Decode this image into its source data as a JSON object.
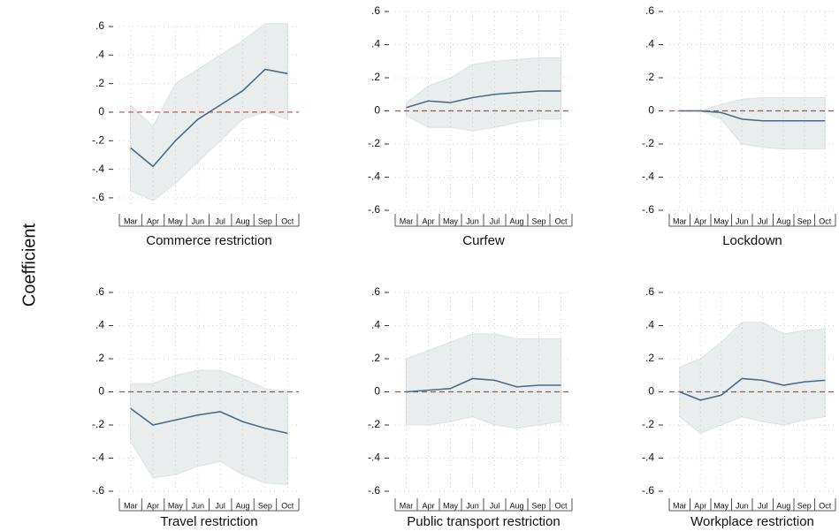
{
  "y_label": "Coefficient",
  "chart_data": [
    {
      "type": "line",
      "title": "Commerce restriction",
      "categories": [
        "Mar",
        "Apr",
        "May",
        "Jun",
        "Jul",
        "Aug",
        "Sep",
        "Oct"
      ],
      "values": [
        -0.25,
        -0.38,
        -0.2,
        -0.05,
        0.05,
        0.15,
        0.3,
        0.27
      ],
      "ci_lower": [
        -0.55,
        -0.62,
        -0.5,
        -0.35,
        -0.2,
        -0.05,
        0.0,
        -0.05
      ],
      "ci_upper": [
        0.05,
        -0.1,
        0.2,
        0.3,
        0.4,
        0.5,
        0.62,
        0.62
      ],
      "color": "#4a6a85",
      "band_color": "#e9eded",
      "reference_line": 0,
      "reference_color": "#b84a4a",
      "ylim": [
        -0.65,
        0.6
      ],
      "yticks": [
        {
          "value": -0.6,
          "label": "-.6"
        },
        {
          "value": -0.4,
          "label": "-.4"
        },
        {
          "value": -0.2,
          "label": "-.2"
        },
        0,
        {
          "value": 0.2,
          "label": ".2"
        },
        {
          "value": 0.4,
          "label": ".4"
        },
        {
          "value": 0.6,
          "label": ".6"
        }
      ],
      "grid": true
    },
    {
      "type": "line",
      "title": "Curfew",
      "categories": [
        "Mar",
        "Apr",
        "May",
        "Jun",
        "Jul",
        "Aug",
        "Sep",
        "Oct"
      ],
      "values": [
        0.02,
        0.06,
        0.05,
        0.08,
        0.1,
        0.11,
        0.12,
        0.12
      ],
      "ci_lower": [
        -0.03,
        -0.1,
        -0.1,
        -0.12,
        -0.1,
        -0.07,
        -0.05,
        -0.05
      ],
      "ci_upper": [
        0.05,
        0.15,
        0.2,
        0.28,
        0.3,
        0.31,
        0.32,
        0.32
      ],
      "color": "#4a6a85",
      "band_color": "#e9eded",
      "reference_line": 0,
      "reference_color": "#b84a4a",
      "ylim": [
        -0.6,
        0.6
      ],
      "yticks": [
        {
          "value": -0.6,
          "label": "-.6"
        },
        {
          "value": -0.4,
          "label": "-.4"
        },
        {
          "value": -0.2,
          "label": "-.2"
        },
        0,
        {
          "value": 0.2,
          "label": ".2"
        },
        {
          "value": 0.4,
          "label": ".4"
        },
        {
          "value": 0.6,
          "label": ".6"
        }
      ],
      "grid": true
    },
    {
      "type": "line",
      "title": "Lockdown",
      "categories": [
        "Mar",
        "Apr",
        "May",
        "Jun",
        "Jul",
        "Aug",
        "Sep",
        "Oct"
      ],
      "values": [
        0,
        0,
        -0.01,
        -0.05,
        -0.06,
        -0.06,
        -0.06,
        -0.06
      ],
      "ci_lower": [
        0,
        0,
        -0.05,
        -0.2,
        -0.22,
        -0.23,
        -0.23,
        -0.23
      ],
      "ci_upper": [
        0,
        0,
        0.04,
        0.07,
        0.08,
        0.08,
        0.08,
        0.08
      ],
      "color": "#4a6a85",
      "band_color": "#e9eded",
      "reference_line": 0,
      "reference_color": "#b84a4a",
      "ylim": [
        -0.6,
        0.6
      ],
      "yticks": [
        {
          "value": -0.6,
          "label": "-.6"
        },
        {
          "value": -0.4,
          "label": "-.4"
        },
        {
          "value": -0.2,
          "label": "-.2"
        },
        0,
        {
          "value": 0.2,
          "label": ".2"
        },
        {
          "value": 0.4,
          "label": ".4"
        },
        {
          "value": 0.6,
          "label": ".6"
        }
      ],
      "grid": true
    },
    {
      "type": "line",
      "title": "Travel restriction",
      "categories": [
        "Mar",
        "Apr",
        "May",
        "Jun",
        "Jul",
        "Aug",
        "Sep",
        "Oct"
      ],
      "values": [
        -0.1,
        -0.2,
        -0.17,
        -0.14,
        -0.12,
        -0.18,
        -0.22,
        -0.25
      ],
      "ci_lower": [
        -0.3,
        -0.52,
        -0.5,
        -0.45,
        -0.42,
        -0.5,
        -0.55,
        -0.56
      ],
      "ci_upper": [
        0.05,
        0.05,
        0.1,
        0.13,
        0.13,
        0.08,
        0.02,
        0.0
      ],
      "color": "#4a6a85",
      "band_color": "#e9eded",
      "reference_line": 0,
      "reference_color": "#b84a4a",
      "ylim": [
        -0.6,
        0.6
      ],
      "yticks": [
        {
          "value": -0.6,
          "label": "-.6"
        },
        {
          "value": -0.4,
          "label": "-.4"
        },
        {
          "value": -0.2,
          "label": "-.2"
        },
        0,
        {
          "value": 0.2,
          "label": ".2"
        },
        {
          "value": 0.4,
          "label": ".4"
        },
        {
          "value": 0.6,
          "label": ".6"
        }
      ],
      "grid": true
    },
    {
      "type": "line",
      "title": "Public transport restriction",
      "categories": [
        "Mar",
        "Apr",
        "May",
        "Jun",
        "Jul",
        "Aug",
        "Sep",
        "Oct"
      ],
      "values": [
        0.0,
        0.01,
        0.02,
        0.08,
        0.07,
        0.03,
        0.04,
        0.04
      ],
      "ci_lower": [
        -0.2,
        -0.2,
        -0.18,
        -0.15,
        -0.2,
        -0.22,
        -0.2,
        -0.18
      ],
      "ci_upper": [
        0.2,
        0.25,
        0.3,
        0.35,
        0.35,
        0.32,
        0.32,
        0.32
      ],
      "color": "#4a6a85",
      "band_color": "#e9eded",
      "reference_line": 0,
      "reference_color": "#b84a4a",
      "ylim": [
        -0.6,
        0.6
      ],
      "yticks": [
        {
          "value": -0.6,
          "label": "-.6"
        },
        {
          "value": -0.4,
          "label": "-.4"
        },
        {
          "value": -0.2,
          "label": "-.2"
        },
        0,
        {
          "value": 0.2,
          "label": ".2"
        },
        {
          "value": 0.4,
          "label": ".4"
        },
        {
          "value": 0.6,
          "label": ".6"
        }
      ],
      "grid": true
    },
    {
      "type": "line",
      "title": "Workplace restriction",
      "categories": [
        "Mar",
        "Apr",
        "May",
        "Jun",
        "Jul",
        "Aug",
        "Sep",
        "Oct"
      ],
      "values": [
        0.0,
        -0.05,
        -0.02,
        0.08,
        0.07,
        0.04,
        0.06,
        0.07
      ],
      "ci_lower": [
        -0.15,
        -0.25,
        -0.2,
        -0.15,
        -0.18,
        -0.2,
        -0.17,
        -0.15
      ],
      "ci_upper": [
        0.15,
        0.2,
        0.3,
        0.42,
        0.42,
        0.35,
        0.37,
        0.38
      ],
      "color": "#4a6a85",
      "band_color": "#e9eded",
      "reference_line": 0,
      "reference_color": "#b84a4a",
      "ylim": [
        -0.6,
        0.6
      ],
      "yticks": [
        {
          "value": -0.6,
          "label": "-.6"
        },
        {
          "value": -0.4,
          "label": "-.4"
        },
        {
          "value": -0.2,
          "label": "-.2"
        },
        0,
        {
          "value": 0.2,
          "label": ".2"
        },
        {
          "value": 0.4,
          "label": ".4"
        },
        {
          "value": 0.6,
          "label": ".6"
        }
      ],
      "grid": true
    }
  ]
}
